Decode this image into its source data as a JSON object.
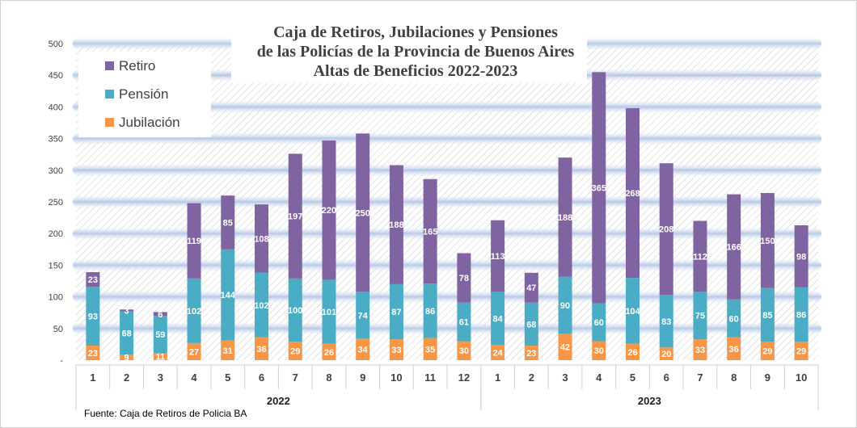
{
  "chart_data": {
    "type": "bar",
    "stacked": true,
    "title_lines": [
      "Caja de Retiros, Jubilaciones y Pensiones",
      "de las Policías de la Provincia de Buenos Aires",
      "Altas de Beneficios 2022-2023"
    ],
    "categories": [
      "1",
      "2",
      "3",
      "4",
      "5",
      "6",
      "7",
      "8",
      "9",
      "10",
      "11",
      "12",
      "1",
      "2",
      "3",
      "4",
      "5",
      "6",
      "7",
      "8",
      "9",
      "10"
    ],
    "groups": [
      {
        "label": "2022",
        "start": 0,
        "count": 12
      },
      {
        "label": "2023",
        "start": 12,
        "count": 10
      }
    ],
    "series": [
      {
        "name": "Jubilación",
        "color": "#f79646",
        "values": [
          23,
          9,
          11,
          27,
          31,
          36,
          29,
          26,
          34,
          33,
          35,
          30,
          24,
          23,
          42,
          30,
          26,
          20,
          33,
          36,
          29,
          29
        ]
      },
      {
        "name": "Pensión",
        "color": "#4bacc6",
        "values": [
          93,
          68,
          59,
          102,
          144,
          102,
          100,
          101,
          74,
          87,
          86,
          61,
          84,
          68,
          90,
          60,
          104,
          83,
          75,
          60,
          85,
          86
        ]
      },
      {
        "name": "Retiro",
        "color": "#8064a2",
        "values": [
          23,
          3,
          6,
          119,
          85,
          108,
          197,
          220,
          250,
          188,
          165,
          78,
          113,
          47,
          188,
          365,
          268,
          208,
          112,
          166,
          150,
          98
        ]
      }
    ],
    "legend_order": [
      "Retiro",
      "Pensión",
      "Jubilación"
    ],
    "y_ticks": [
      "-",
      "50",
      "100",
      "150",
      "200",
      "250",
      "300",
      "350",
      "400",
      "450",
      "500"
    ],
    "ylim": [
      0,
      500
    ],
    "legend_position": "top-left",
    "grid": true
  },
  "source": "Fuente: Caja de Retiros de Policia BA"
}
